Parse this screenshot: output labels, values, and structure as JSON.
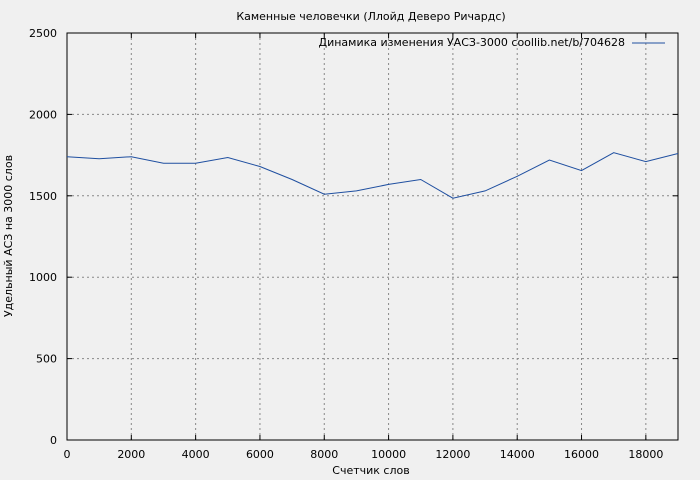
{
  "chart_data": {
    "type": "line",
    "title": "Каменные человечки (Ллойд Деверо Ричардс)",
    "xlabel": "Счетчик слов",
    "ylabel": "Удельный АСЗ на 3000 слов",
    "xlim": [
      0,
      19000
    ],
    "ylim": [
      0,
      2500
    ],
    "xticks": [
      0,
      2000,
      4000,
      6000,
      8000,
      10000,
      12000,
      14000,
      16000,
      18000
    ],
    "yticks": [
      0,
      500,
      1000,
      1500,
      2000,
      2500
    ],
    "grid": true,
    "legend_position": "top-right",
    "series": [
      {
        "name": "Динамика изменения УАСЗ-3000 coollib.net/b/704628",
        "color": "#1f4fa0",
        "x": [
          0,
          1000,
          2000,
          3000,
          4000,
          5000,
          6000,
          7000,
          8000,
          9000,
          10000,
          11000,
          12000,
          13000,
          14000,
          15000,
          16000,
          17000,
          18000,
          19000
        ],
        "y": [
          1740,
          1728,
          1740,
          1700,
          1700,
          1735,
          1680,
          1600,
          1510,
          1530,
          1570,
          1600,
          1485,
          1530,
          1620,
          1720,
          1655,
          1765,
          1710,
          1760
        ]
      }
    ]
  }
}
